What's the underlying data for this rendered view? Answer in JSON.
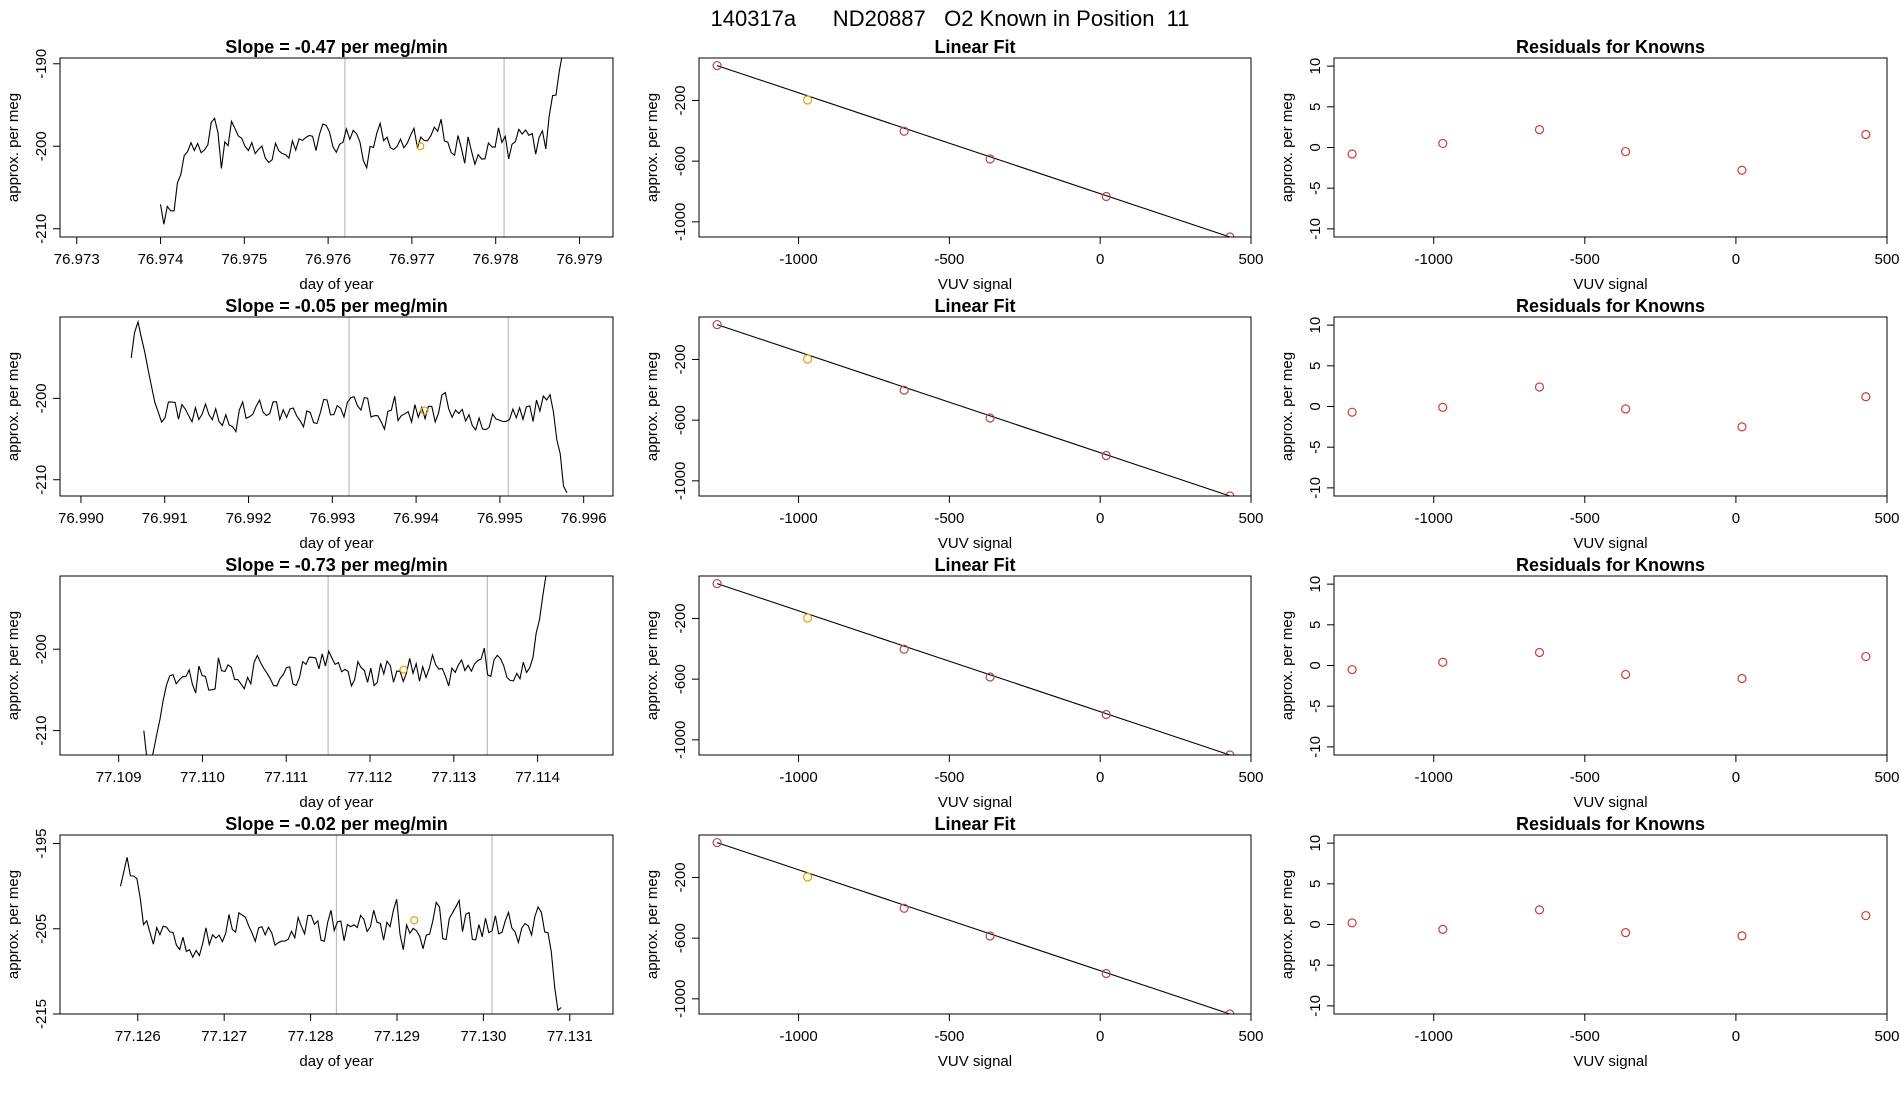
{
  "figure": {
    "title": "140317a      ND20887   O2 Known in Position  11"
  },
  "colors": {
    "series_line": "#000000",
    "marker_orange": "#e69f00",
    "marker_red": "#cd3a3a",
    "fit_point": "#b5484a",
    "gray_line": "#bebebe",
    "axis": "#000000"
  },
  "chart_data": [
    {
      "type": "line",
      "title": "Slope =  -0.47  per meg/min",
      "xlabel": "day of year",
      "ylabel": "approx. per meg",
      "xlim": [
        76.9728,
        76.9794
      ],
      "ylim": [
        -211.0,
        -189.3
      ],
      "xticks": [
        76.973,
        76.974,
        76.975,
        76.976,
        76.977,
        76.978,
        76.979
      ],
      "xtick_labels": [
        "76.973",
        "76.974",
        "76.975",
        "76.976",
        "76.977",
        "76.978",
        "76.979"
      ],
      "yticks": [
        -190,
        -200,
        -210
      ],
      "ytick_labels": [
        "-190",
        "-200",
        "-210"
      ],
      "vlines": [
        76.9762,
        76.9781
      ],
      "marker": {
        "x": 76.9771,
        "y": -200
      },
      "x_start": 76.974,
      "x_end": 76.9788,
      "n_points": 120,
      "seed": 11,
      "start_y": -211,
      "level_y": -199.5,
      "end_y": -186,
      "amplitude": 3.2,
      "drop_near_start": true,
      "rise_at_end": true
    },
    {
      "type": "scatter",
      "title": "Linear Fit",
      "xlabel": "VUV signal",
      "ylabel": "approx. per meg",
      "xlim": [
        -1330,
        500
      ],
      "ylim": [
        -1100,
        80
      ],
      "xticks": [
        -1000,
        -500,
        0,
        500
      ],
      "xtick_labels": [
        "-1000",
        "-500",
        "0",
        "500"
      ],
      "yticks": [
        -200,
        -600,
        -1000
      ],
      "ytick_labels": [
        "-200",
        "-600",
        "-1000"
      ],
      "points": [
        {
          "x": -1270,
          "y": 30
        },
        {
          "x": -970,
          "y": -197,
          "highlight": true
        },
        {
          "x": -650,
          "y": -403
        },
        {
          "x": -365,
          "y": -586
        },
        {
          "x": 20,
          "y": -833
        },
        {
          "x": 430,
          "y": -1100
        }
      ],
      "fit_line": [
        [
          -1270,
          30
        ],
        [
          430,
          -1100
        ]
      ]
    },
    {
      "type": "scatter",
      "title": "Residuals for Knowns",
      "xlabel": "VUV signal",
      "ylabel": "approx. per meg",
      "xlim": [
        -1330,
        500
      ],
      "ylim": [
        -11,
        11
      ],
      "xticks": [
        -1000,
        -500,
        0,
        500
      ],
      "xtick_labels": [
        "-1000",
        "-500",
        "0",
        "500"
      ],
      "yticks": [
        10,
        5,
        0,
        -5,
        -10
      ],
      "ytick_labels": [
        "10",
        "5",
        "0",
        "-5",
        "-10"
      ],
      "points": [
        {
          "x": -1270,
          "y": -0.8
        },
        {
          "x": -970,
          "y": 0.5
        },
        {
          "x": -650,
          "y": 2.2
        },
        {
          "x": -365,
          "y": -0.5
        },
        {
          "x": 20,
          "y": -2.8
        },
        {
          "x": 430,
          "y": 1.6
        }
      ]
    },
    {
      "type": "line",
      "title": "Slope =  -0.05  per meg/min",
      "xlabel": "day of year",
      "ylabel": "approx. per meg",
      "xlim": [
        76.98975,
        76.99635
      ],
      "ylim": [
        -212.0,
        -190.0
      ],
      "xticks": [
        76.99,
        76.991,
        76.992,
        76.993,
        76.994,
        76.995,
        76.996
      ],
      "xtick_labels": [
        "76.990",
        "76.991",
        "76.992",
        "76.993",
        "76.994",
        "76.995",
        "76.996"
      ],
      "yticks": [
        -200,
        -210
      ],
      "ytick_labels": [
        "-200",
        "-210"
      ],
      "vlines": [
        76.9932,
        76.9951
      ],
      "marker": {
        "x": 76.9941,
        "y": -201.5
      },
      "x_start": 76.9906,
      "x_end": 76.9958,
      "n_points": 130,
      "seed": 23,
      "start_y": -188,
      "level_y": -201.5,
      "end_y": -214,
      "amplitude": 2.8,
      "drop_near_start": false,
      "rise_at_end": false
    },
    {
      "type": "scatter",
      "title": "Linear Fit",
      "xlabel": "VUV signal",
      "ylabel": "approx. per meg",
      "xlim": [
        -1330,
        500
      ],
      "ylim": [
        -1100,
        80
      ],
      "xticks": [
        -1000,
        -500,
        0,
        500
      ],
      "xtick_labels": [
        "-1000",
        "-500",
        "0",
        "500"
      ],
      "yticks": [
        -200,
        -600,
        -1000
      ],
      "ytick_labels": [
        "-200",
        "-600",
        "-1000"
      ],
      "points": [
        {
          "x": -1270,
          "y": 30
        },
        {
          "x": -970,
          "y": -197,
          "highlight": true
        },
        {
          "x": -650,
          "y": -403
        },
        {
          "x": -365,
          "y": -586
        },
        {
          "x": 20,
          "y": -833
        },
        {
          "x": 430,
          "y": -1100
        }
      ],
      "fit_line": [
        [
          -1270,
          30
        ],
        [
          430,
          -1100
        ]
      ]
    },
    {
      "type": "scatter",
      "title": "Residuals for Knowns",
      "xlabel": "VUV signal",
      "ylabel": "approx. per meg",
      "xlim": [
        -1330,
        500
      ],
      "ylim": [
        -11,
        11
      ],
      "xticks": [
        -1000,
        -500,
        0,
        500
      ],
      "xtick_labels": [
        "-1000",
        "-500",
        "0",
        "500"
      ],
      "yticks": [
        10,
        5,
        0,
        -5,
        -10
      ],
      "ytick_labels": [
        "10",
        "5",
        "0",
        "-5",
        "-10"
      ],
      "points": [
        {
          "x": -1270,
          "y": -0.7
        },
        {
          "x": -970,
          "y": -0.1
        },
        {
          "x": -650,
          "y": 2.4
        },
        {
          "x": -365,
          "y": -0.3
        },
        {
          "x": 20,
          "y": -2.5
        },
        {
          "x": 430,
          "y": 1.2
        }
      ]
    },
    {
      "type": "line",
      "title": "Slope =  -0.73  per meg/min",
      "xlabel": "day of year",
      "ylabel": "approx. per meg",
      "xlim": [
        77.1083,
        77.1149
      ],
      "ylim": [
        -213.0,
        -191.0
      ],
      "xticks": [
        77.109,
        77.11,
        77.111,
        77.112,
        77.113,
        77.114
      ],
      "xtick_labels": [
        "77.109",
        "77.110",
        "77.111",
        "77.112",
        "77.113",
        "77.114"
      ],
      "yticks": [
        -200,
        -210
      ],
      "ytick_labels": [
        "-200",
        "-210"
      ],
      "vlines": [
        77.1115,
        77.1134
      ],
      "marker": {
        "x": 77.1124,
        "y": -202.5
      },
      "x_start": 77.1093,
      "x_end": 77.1141,
      "n_points": 125,
      "seed": 37,
      "start_y": -215,
      "level_y": -202.5,
      "end_y": -188,
      "amplitude": 2.9,
      "drop_near_start": true,
      "rise_at_end": true
    },
    {
      "type": "scatter",
      "title": "Linear Fit",
      "xlabel": "VUV signal",
      "ylabel": "approx. per meg",
      "xlim": [
        -1330,
        500
      ],
      "ylim": [
        -1100,
        80
      ],
      "xticks": [
        -1000,
        -500,
        0,
        500
      ],
      "xtick_labels": [
        "-1000",
        "-500",
        "0",
        "500"
      ],
      "yticks": [
        -200,
        -600,
        -1000
      ],
      "ytick_labels": [
        "-200",
        "-600",
        "-1000"
      ],
      "points": [
        {
          "x": -1270,
          "y": 30
        },
        {
          "x": -970,
          "y": -197,
          "highlight": true
        },
        {
          "x": -650,
          "y": -403
        },
        {
          "x": -365,
          "y": -586
        },
        {
          "x": 20,
          "y": -833
        },
        {
          "x": 430,
          "y": -1100
        }
      ],
      "fit_line": [
        [
          -1270,
          30
        ],
        [
          430,
          -1100
        ]
      ]
    },
    {
      "type": "scatter",
      "title": "Residuals for Knowns",
      "xlabel": "VUV signal",
      "ylabel": "approx. per meg",
      "xlim": [
        -1330,
        500
      ],
      "ylim": [
        -11,
        11
      ],
      "xticks": [
        -1000,
        -500,
        0,
        500
      ],
      "xtick_labels": [
        "-1000",
        "-500",
        "0",
        "500"
      ],
      "yticks": [
        10,
        5,
        0,
        -5,
        -10
      ],
      "ytick_labels": [
        "10",
        "5",
        "0",
        "-5",
        "-10"
      ],
      "points": [
        {
          "x": -1270,
          "y": -0.5
        },
        {
          "x": -970,
          "y": 0.4
        },
        {
          "x": -650,
          "y": 1.6
        },
        {
          "x": -365,
          "y": -1.1
        },
        {
          "x": 20,
          "y": -1.6
        },
        {
          "x": 430,
          "y": 1.1
        }
      ]
    },
    {
      "type": "line",
      "title": "Slope =  -0.02  per meg/min",
      "xlabel": "day of year",
      "ylabel": "approx. per meg",
      "xlim": [
        77.1251,
        77.1315
      ],
      "ylim": [
        -215.0,
        -194.0
      ],
      "xticks": [
        77.126,
        77.127,
        77.128,
        77.129,
        77.13,
        77.131
      ],
      "xtick_labels": [
        "77.126",
        "77.127",
        "77.128",
        "77.129",
        "77.130",
        "77.131"
      ],
      "yticks": [
        -195,
        -205,
        -215
      ],
      "ytick_labels": [
        "-195",
        "-205",
        "-215"
      ],
      "vlines": [
        77.1283,
        77.1301
      ],
      "marker": {
        "x": 77.1292,
        "y": -204
      },
      "x_start": 77.1258,
      "x_end": 77.1309,
      "n_points": 135,
      "seed": 53,
      "start_y": -193,
      "level_y": -205,
      "end_y": -216,
      "amplitude": 3.6,
      "drop_near_start": false,
      "rise_at_end": false
    },
    {
      "type": "scatter",
      "title": "Linear Fit",
      "xlabel": "VUV signal",
      "ylabel": "approx. per meg",
      "xlim": [
        -1330,
        500
      ],
      "ylim": [
        -1100,
        80
      ],
      "xticks": [
        -1000,
        -500,
        0,
        500
      ],
      "xtick_labels": [
        "-1000",
        "-500",
        "0",
        "500"
      ],
      "yticks": [
        -200,
        -600,
        -1000
      ],
      "ytick_labels": [
        "-200",
        "-600",
        "-1000"
      ],
      "points": [
        {
          "x": -1270,
          "y": 30
        },
        {
          "x": -970,
          "y": -197,
          "highlight": true
        },
        {
          "x": -650,
          "y": -403
        },
        {
          "x": -365,
          "y": -586
        },
        {
          "x": 20,
          "y": -833
        },
        {
          "x": 430,
          "y": -1100
        }
      ],
      "fit_line": [
        [
          -1270,
          30
        ],
        [
          430,
          -1100
        ]
      ]
    },
    {
      "type": "scatter",
      "title": "Residuals for Knowns",
      "xlabel": "VUV signal",
      "ylabel": "approx. per meg",
      "xlim": [
        -1330,
        500
      ],
      "ylim": [
        -11,
        11
      ],
      "xticks": [
        -1000,
        -500,
        0,
        500
      ],
      "xtick_labels": [
        "-1000",
        "-500",
        "0",
        "500"
      ],
      "yticks": [
        10,
        5,
        0,
        -5,
        -10
      ],
      "ytick_labels": [
        "10",
        "5",
        "0",
        "-5",
        "-10"
      ],
      "points": [
        {
          "x": -1270,
          "y": 0.2
        },
        {
          "x": -970,
          "y": -0.6
        },
        {
          "x": -650,
          "y": 1.8
        },
        {
          "x": -365,
          "y": -1.0
        },
        {
          "x": 20,
          "y": -1.4
        },
        {
          "x": 430,
          "y": 1.1
        }
      ]
    }
  ]
}
